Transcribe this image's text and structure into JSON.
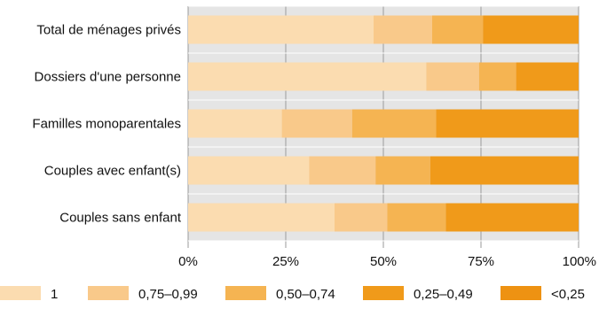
{
  "chart_data": {
    "type": "bar",
    "orientation": "horizontal",
    "stacked": "percent",
    "categories": [
      "Total de ménages privés",
      "Dossiers d'une personne",
      "Familles monoparentales",
      "Couples avec enfant(s)",
      "Couples sans enfant"
    ],
    "series": [
      {
        "name": "1",
        "color": "#fbdcb0",
        "values": [
          47.5,
          61.0,
          24.0,
          31.0,
          37.5
        ]
      },
      {
        "name": "0,75–0,99",
        "color": "#f9c98a",
        "values": [
          15.0,
          13.5,
          18.0,
          17.0,
          13.5
        ]
      },
      {
        "name": "0,50–0,74",
        "color": "#f5b452",
        "values": [
          13.0,
          9.5,
          21.5,
          14.0,
          15.0
        ]
      },
      {
        "name": "0,25–0,49",
        "color": "#f09a1a",
        "values": [
          24.5,
          16.0,
          36.5,
          38.0,
          34.0
        ]
      },
      {
        "name": "<0,25",
        "color": "#ee9212",
        "values": [
          0,
          0,
          0,
          0,
          0
        ]
      }
    ],
    "xlim": [
      0,
      100
    ],
    "xticks": [
      "0%",
      "25%",
      "50%",
      "75%",
      "100%"
    ],
    "grid": true,
    "legend_position": "bottom"
  }
}
